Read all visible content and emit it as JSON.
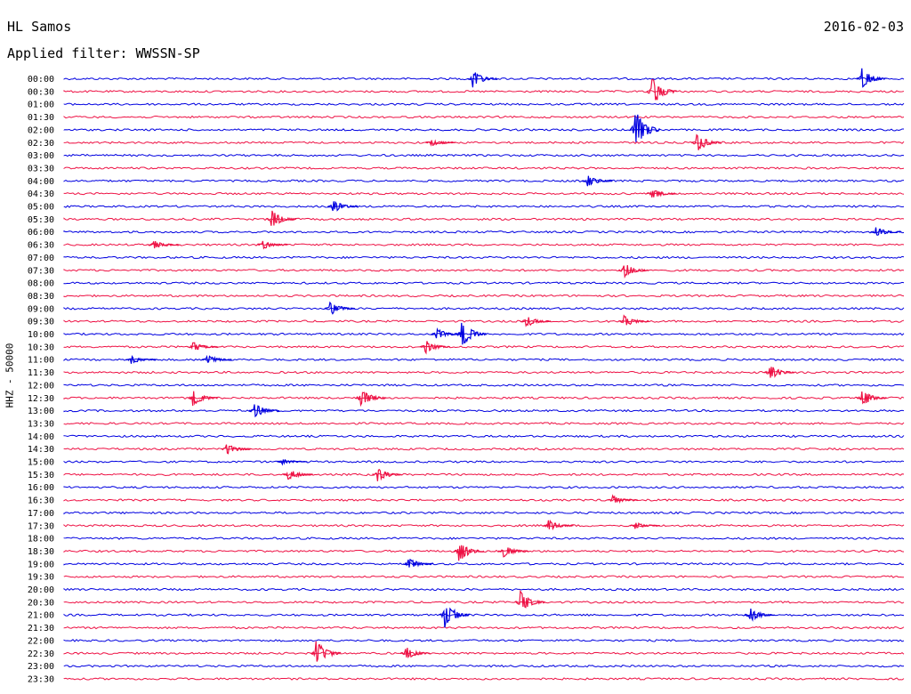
{
  "header": {
    "station": "HL Samos",
    "date": "2016-02-03",
    "filter": "Applied filter: WWSSN-SP"
  },
  "axis_label": "HHZ - 50000",
  "chart_data": {
    "type": "line",
    "title": "HL Samos",
    "date": "2016-02-03",
    "filter": "Applied filter: WWSSN-SP",
    "ylabel": "HHZ - 50000",
    "grid": false,
    "rows": [
      "00:00",
      "00:30",
      "01:00",
      "01:30",
      "02:00",
      "02:30",
      "03:00",
      "03:30",
      "04:00",
      "04:30",
      "05:00",
      "05:30",
      "06:00",
      "06:30",
      "07:00",
      "07:30",
      "08:00",
      "08:30",
      "09:00",
      "09:30",
      "10:00",
      "10:30",
      "11:00",
      "11:30",
      "12:00",
      "12:30",
      "13:00",
      "13:30",
      "14:00",
      "14:30",
      "15:00",
      "15:30",
      "16:00",
      "16:30",
      "17:00",
      "17:30",
      "18:00",
      "18:30",
      "19:00",
      "19:30",
      "20:00",
      "20:30",
      "21:00",
      "21:30",
      "22:00",
      "22:30",
      "23:00",
      "23:30"
    ],
    "minutes_per_row": 30,
    "colors": [
      "#0000e0",
      "#ee1144"
    ],
    "events": [
      {
        "row": 0,
        "minute": 14.6,
        "amp": 10
      },
      {
        "row": 0,
        "minute": 28.5,
        "amp": 12
      },
      {
        "row": 1,
        "minute": 21,
        "amp": 18
      },
      {
        "row": 4,
        "minute": 20.4,
        "amp": 25
      },
      {
        "row": 5,
        "minute": 13.1,
        "amp": 4
      },
      {
        "row": 5,
        "minute": 22.6,
        "amp": 12
      },
      {
        "row": 8,
        "minute": 18.7,
        "amp": 7
      },
      {
        "row": 9,
        "minute": 21,
        "amp": 6
      },
      {
        "row": 10,
        "minute": 9.6,
        "amp": 8
      },
      {
        "row": 11,
        "minute": 7.4,
        "amp": 11
      },
      {
        "row": 12,
        "minute": 29,
        "amp": 6
      },
      {
        "row": 13,
        "minute": 3.2,
        "amp": 6
      },
      {
        "row": 13,
        "minute": 7.1,
        "amp": 5
      },
      {
        "row": 15,
        "minute": 20,
        "amp": 10
      },
      {
        "row": 18,
        "minute": 9.5,
        "amp": 9
      },
      {
        "row": 19,
        "minute": 16.5,
        "amp": 7
      },
      {
        "row": 19,
        "minute": 20,
        "amp": 7
      },
      {
        "row": 20,
        "minute": 13.3,
        "amp": 7
      },
      {
        "row": 20,
        "minute": 14.2,
        "amp": 16
      },
      {
        "row": 21,
        "minute": 4.6,
        "amp": 6
      },
      {
        "row": 21,
        "minute": 12.9,
        "amp": 8
      },
      {
        "row": 22,
        "minute": 2.4,
        "amp": 5
      },
      {
        "row": 22,
        "minute": 5.1,
        "amp": 6
      },
      {
        "row": 23,
        "minute": 25.2,
        "amp": 9
      },
      {
        "row": 25,
        "minute": 4.6,
        "amp": 9
      },
      {
        "row": 25,
        "minute": 10.6,
        "amp": 11
      },
      {
        "row": 25,
        "minute": 28.5,
        "amp": 10
      },
      {
        "row": 26,
        "minute": 6.8,
        "amp": 9
      },
      {
        "row": 29,
        "minute": 5.8,
        "amp": 7
      },
      {
        "row": 30,
        "minute": 7.8,
        "amp": 3
      },
      {
        "row": 31,
        "minute": 8,
        "amp": 7
      },
      {
        "row": 31,
        "minute": 11.2,
        "amp": 8
      },
      {
        "row": 33,
        "minute": 19.6,
        "amp": 5
      },
      {
        "row": 35,
        "minute": 17.3,
        "amp": 7
      },
      {
        "row": 35,
        "minute": 20.4,
        "amp": 4
      },
      {
        "row": 37,
        "minute": 14.1,
        "amp": 13
      },
      {
        "row": 37,
        "minute": 15.7,
        "amp": 7
      },
      {
        "row": 38,
        "minute": 12.3,
        "amp": 7
      },
      {
        "row": 41,
        "minute": 16.3,
        "amp": 13
      },
      {
        "row": 42,
        "minute": 13.6,
        "amp": 17
      },
      {
        "row": 42,
        "minute": 24.5,
        "amp": 8
      },
      {
        "row": 45,
        "minute": 9,
        "amp": 16
      },
      {
        "row": 45,
        "minute": 12.2,
        "amp": 8
      }
    ]
  }
}
